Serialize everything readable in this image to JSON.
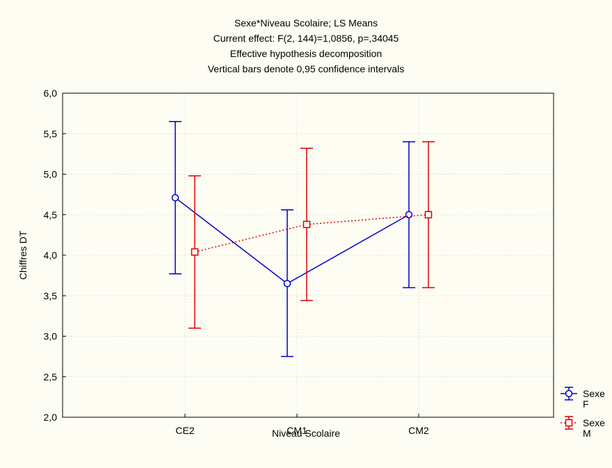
{
  "chart_data": {
    "type": "line",
    "title_lines": [
      "Sexe*Niveau Scolaire; LS Means",
      "Current effect: F(2, 144)=1,0856, p=,34045",
      "Effective hypothesis decomposition",
      "Vertical bars denote 0,95 confidence intervals"
    ],
    "xlabel": "Niveau Scolaire",
    "ylabel": "Chiffres DT",
    "categories": [
      "CE2",
      "CM1",
      "CM2"
    ],
    "ylim": [
      2.0,
      6.0
    ],
    "yticks": [
      2.0,
      2.5,
      3.0,
      3.5,
      4.0,
      4.5,
      5.0,
      5.5,
      6.0
    ],
    "ytick_labels": [
      "2,0",
      "2,5",
      "3,0",
      "3,5",
      "4,0",
      "4,5",
      "5,0",
      "5,5",
      "6,0"
    ],
    "grid": true,
    "legend_position": "bottom-right",
    "series": [
      {
        "name": "Sexe F",
        "legend_line1": "Sexe",
        "legend_line2": "F",
        "color": "#0000cc",
        "line_style": "solid",
        "marker": "circle",
        "values": [
          4.71,
          3.65,
          4.5
        ],
        "ci_low": [
          3.77,
          2.75,
          3.6
        ],
        "ci_high": [
          5.65,
          4.56,
          5.4
        ]
      },
      {
        "name": "Sexe M",
        "legend_line1": "Sexe",
        "legend_line2": "M",
        "color": "#dd0000",
        "line_style": "dotted",
        "marker": "square",
        "values": [
          4.04,
          4.38,
          4.5
        ],
        "ci_low": [
          3.1,
          3.44,
          3.6
        ],
        "ci_high": [
          4.98,
          5.32,
          5.4
        ]
      }
    ]
  }
}
